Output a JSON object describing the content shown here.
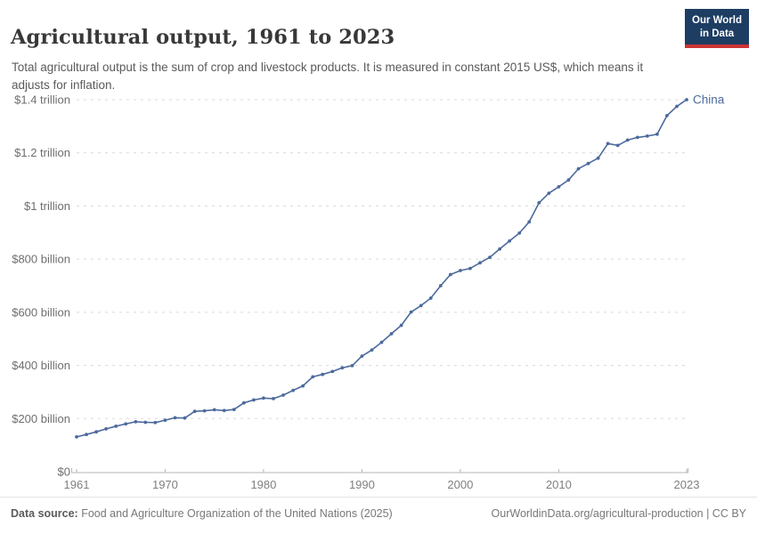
{
  "header": {
    "title": "Agricultural output, 1961 to 2023",
    "subtitle": "Total agricultural output is the sum of crop and livestock products. It is measured in constant 2015 US$, which means it adjusts for inflation.",
    "logo": {
      "line1": "Our World",
      "line2": "in Data"
    }
  },
  "footer": {
    "source_label": "Data source:",
    "source_text": " Food and Agriculture Organization of the United Nations (2025)",
    "right_text": "OurWorldinData.org/agricultural-production | CC BY"
  },
  "colors": {
    "series_blue": "#4c6a9c",
    "gridline": "#d9d9d9",
    "axis_line": "#b6b6b6",
    "tick_label": "#808080",
    "y_label": "#6e6e6e",
    "logo_navy": "#1d3d63",
    "logo_red": "#cb3434"
  },
  "chart_data": {
    "type": "line",
    "title": "Agricultural output, 1961 to 2023",
    "xlabel": "",
    "ylabel": "",
    "xlim": [
      1961,
      2023
    ],
    "ylim": [
      0,
      1400
    ],
    "grid": "horizontal-dashed",
    "legend_position": "end-of-line-label",
    "unit_note": "values in billion constant 2015 US$",
    "x_ticks": [
      1961,
      1970,
      1980,
      1990,
      2000,
      2010,
      2023
    ],
    "y_ticks": [
      {
        "value": 0,
        "label": "$0"
      },
      {
        "value": 200,
        "label": "$200 billion"
      },
      {
        "value": 400,
        "label": "$400 billion"
      },
      {
        "value": 600,
        "label": "$600 billion"
      },
      {
        "value": 800,
        "label": "$800 billion"
      },
      {
        "value": 1000,
        "label": "$1 trillion"
      },
      {
        "value": 1200,
        "label": "$1.2 trillion"
      },
      {
        "value": 1400,
        "label": "$1.4 trillion"
      }
    ],
    "series": [
      {
        "name": "China",
        "color": "#4c6a9c",
        "x": [
          1961,
          1962,
          1963,
          1964,
          1965,
          1966,
          1967,
          1968,
          1969,
          1970,
          1971,
          1972,
          1973,
          1974,
          1975,
          1976,
          1977,
          1978,
          1979,
          1980,
          1981,
          1982,
          1983,
          1984,
          1985,
          1986,
          1987,
          1988,
          1989,
          1990,
          1991,
          1992,
          1993,
          1994,
          1995,
          1996,
          1997,
          1998,
          1999,
          2000,
          2001,
          2002,
          2003,
          2004,
          2005,
          2006,
          2007,
          2008,
          2009,
          2010,
          2011,
          2012,
          2013,
          2014,
          2015,
          2016,
          2017,
          2018,
          2019,
          2020,
          2021,
          2022,
          2023
        ],
        "values": [
          131,
          140,
          150,
          161,
          171,
          180,
          188,
          186,
          185,
          194,
          203,
          202,
          227,
          229,
          233,
          230,
          234,
          259,
          270,
          277,
          275,
          288,
          306,
          323,
          357,
          366,
          377,
          391,
          399,
          435,
          458,
          487,
          519,
          551,
          601,
          625,
          653,
          700,
          742,
          757,
          765,
          786,
          807,
          838,
          868,
          898,
          940,
          1012,
          1048,
          1072,
          1098,
          1140,
          1160,
          1180,
          1235,
          1228,
          1248,
          1258,
          1263,
          1270,
          1340,
          1375,
          1400
        ]
      }
    ]
  }
}
